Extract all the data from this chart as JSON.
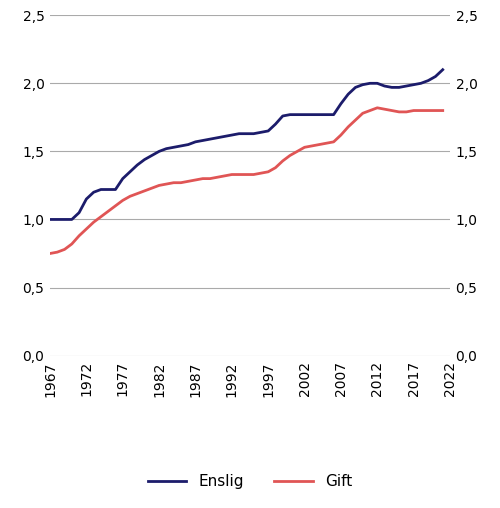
{
  "enslig_years": [
    1967,
    1968,
    1969,
    1970,
    1971,
    1972,
    1973,
    1974,
    1975,
    1976,
    1977,
    1978,
    1979,
    1980,
    1981,
    1982,
    1983,
    1984,
    1985,
    1986,
    1987,
    1988,
    1989,
    1990,
    1991,
    1992,
    1993,
    1994,
    1995,
    1996,
    1997,
    1998,
    1999,
    2000,
    2001,
    2002,
    2003,
    2004,
    2005,
    2006,
    2007,
    2008,
    2009,
    2010,
    2011,
    2012,
    2013,
    2014,
    2015,
    2016,
    2017,
    2018,
    2019,
    2020,
    2021
  ],
  "enslig_values": [
    1.0,
    1.0,
    1.0,
    1.0,
    1.05,
    1.15,
    1.2,
    1.22,
    1.22,
    1.22,
    1.3,
    1.35,
    1.4,
    1.44,
    1.47,
    1.5,
    1.52,
    1.53,
    1.54,
    1.55,
    1.57,
    1.58,
    1.59,
    1.6,
    1.61,
    1.62,
    1.63,
    1.63,
    1.63,
    1.64,
    1.65,
    1.7,
    1.76,
    1.77,
    1.77,
    1.77,
    1.77,
    1.77,
    1.77,
    1.77,
    1.85,
    1.92,
    1.97,
    1.99,
    2.0,
    2.0,
    1.98,
    1.97,
    1.97,
    1.98,
    1.99,
    2.0,
    2.02,
    2.05,
    2.1
  ],
  "gift_years": [
    1967,
    1968,
    1969,
    1970,
    1971,
    1972,
    1973,
    1974,
    1975,
    1976,
    1977,
    1978,
    1979,
    1980,
    1981,
    1982,
    1983,
    1984,
    1985,
    1986,
    1987,
    1988,
    1989,
    1990,
    1991,
    1992,
    1993,
    1994,
    1995,
    1996,
    1997,
    1998,
    1999,
    2000,
    2001,
    2002,
    2003,
    2004,
    2005,
    2006,
    2007,
    2008,
    2009,
    2010,
    2011,
    2012,
    2013,
    2014,
    2015,
    2016,
    2017,
    2018,
    2019,
    2020,
    2021
  ],
  "gift_values": [
    0.75,
    0.76,
    0.78,
    0.82,
    0.88,
    0.93,
    0.98,
    1.02,
    1.06,
    1.1,
    1.14,
    1.17,
    1.19,
    1.21,
    1.23,
    1.25,
    1.26,
    1.27,
    1.27,
    1.28,
    1.29,
    1.3,
    1.3,
    1.31,
    1.32,
    1.33,
    1.33,
    1.33,
    1.33,
    1.34,
    1.35,
    1.38,
    1.43,
    1.47,
    1.5,
    1.53,
    1.54,
    1.55,
    1.56,
    1.57,
    1.62,
    1.68,
    1.73,
    1.78,
    1.8,
    1.82,
    1.81,
    1.8,
    1.79,
    1.79,
    1.8,
    1.8,
    1.8,
    1.8,
    1.8
  ],
  "enslig_color": "#1c1c6b",
  "gift_color": "#e05555",
  "line_width": 2.0,
  "ylim": [
    0.0,
    2.5
  ],
  "yticks": [
    0.0,
    0.5,
    1.0,
    1.5,
    2.0,
    2.5
  ],
  "ytick_labels": [
    "0,0",
    "0,5",
    "1,0",
    "1,5",
    "2,0",
    "2,5"
  ],
  "xlim": [
    1967,
    2022
  ],
  "xticks": [
    1967,
    1972,
    1977,
    1982,
    1987,
    1992,
    1997,
    2002,
    2007,
    2012,
    2017,
    2022
  ],
  "legend_enslig": "Enslig",
  "legend_gift": "Gift",
  "background_color": "#ffffff",
  "grid_color": "#aaaaaa"
}
